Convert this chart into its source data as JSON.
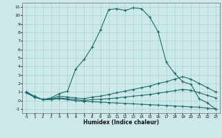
{
  "xlabel": "Humidex (Indice chaleur)",
  "background_color": "#cce8e8",
  "grid_color": "#aad0d0",
  "line_color": "#1a6b6b",
  "xlim": [
    -0.5,
    23.5
  ],
  "ylim": [
    -1.5,
    11.5
  ],
  "xticks": [
    0,
    1,
    2,
    3,
    4,
    5,
    6,
    7,
    8,
    9,
    10,
    11,
    12,
    13,
    14,
    15,
    16,
    17,
    18,
    19,
    20,
    21,
    22,
    23
  ],
  "yticks": [
    -1,
    0,
    1,
    2,
    3,
    4,
    5,
    6,
    7,
    8,
    9,
    10,
    11
  ],
  "line1_x": [
    0,
    1,
    2,
    3,
    4,
    5,
    6,
    7,
    8,
    9,
    10,
    11,
    12,
    13,
    14,
    15,
    16,
    17,
    18,
    19,
    20,
    21,
    22,
    23
  ],
  "line1_y": [
    1.0,
    0.5,
    0.1,
    0.3,
    0.8,
    1.1,
    3.7,
    4.8,
    6.3,
    8.3,
    10.7,
    10.8,
    10.6,
    10.9,
    10.8,
    9.8,
    8.1,
    4.5,
    3.2,
    2.2,
    1.9,
    0.2,
    -0.3,
    -1.0
  ],
  "line2_x": [
    0,
    1,
    2,
    3,
    4,
    5,
    6,
    7,
    8,
    9,
    10,
    11,
    12,
    13,
    14,
    15,
    16,
    17,
    18,
    19,
    20,
    21,
    22,
    23
  ],
  "line2_y": [
    0.9,
    0.4,
    0.1,
    0.2,
    0.5,
    0.4,
    0.3,
    0.2,
    0.4,
    0.5,
    0.7,
    0.9,
    1.1,
    1.3,
    1.5,
    1.7,
    2.0,
    2.2,
    2.5,
    2.8,
    2.5,
    2.0,
    1.5,
    1.0
  ],
  "line3_x": [
    0,
    1,
    2,
    3,
    4,
    5,
    6,
    7,
    8,
    9,
    10,
    11,
    12,
    13,
    14,
    15,
    16,
    17,
    18,
    19,
    20,
    21,
    22,
    23
  ],
  "line3_y": [
    0.9,
    0.4,
    0.1,
    0.15,
    0.3,
    0.2,
    0.1,
    0.0,
    0.1,
    0.15,
    0.2,
    0.3,
    0.4,
    0.5,
    0.6,
    0.7,
    0.85,
    1.0,
    1.15,
    1.3,
    1.2,
    0.9,
    0.6,
    0.3
  ],
  "line4_x": [
    0,
    1,
    2,
    3,
    4,
    5,
    6,
    7,
    8,
    9,
    10,
    11,
    12,
    13,
    14,
    15,
    16,
    17,
    18,
    19,
    20,
    21,
    22,
    23
  ],
  "line4_y": [
    0.9,
    0.4,
    0.1,
    0.1,
    0.2,
    0.1,
    -0.05,
    -0.1,
    -0.15,
    -0.2,
    -0.25,
    -0.3,
    -0.35,
    -0.4,
    -0.45,
    -0.5,
    -0.55,
    -0.6,
    -0.65,
    -0.7,
    -0.75,
    -0.8,
    -0.9,
    -1.0
  ]
}
